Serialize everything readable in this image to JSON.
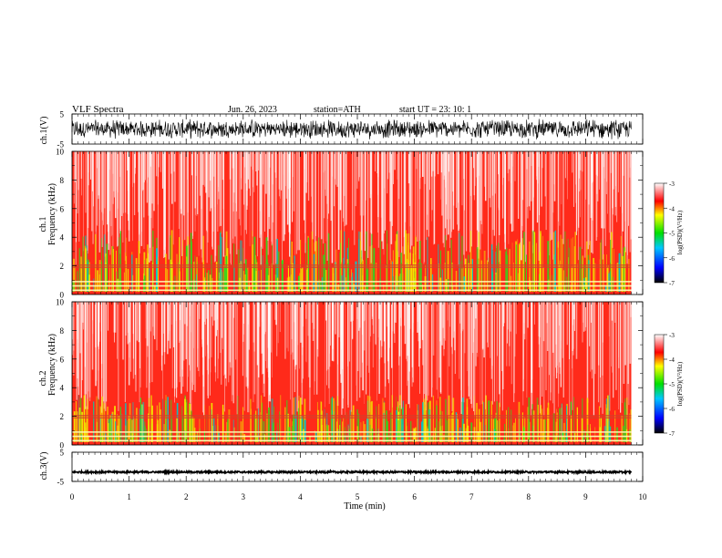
{
  "header": {
    "title": "VLF Spectra",
    "date": "Jun. 26, 2023",
    "station": "station=ATH",
    "start": "start UT =   23: 10: 1"
  },
  "chart_data": [
    {
      "type": "line",
      "name": "ch1-waveform",
      "ylabel": "ch.1(V)",
      "ylim": [
        -5,
        5
      ],
      "yticks": [
        "5",
        "-5"
      ],
      "xlim": [
        0,
        10
      ],
      "trace_amplitude_v": 3.5,
      "trace_end_min": 9.8
    },
    {
      "type": "heatmap",
      "name": "ch1-spectrogram",
      "ylabel": "ch.1\nFrequency (kHz)",
      "ylabel_lines": [
        "ch.1",
        "Frequency (kHz)"
      ],
      "ylim": [
        0,
        10
      ],
      "yticks": [
        "0",
        "2",
        "4",
        "6",
        "8",
        "10"
      ],
      "xlim": [
        0,
        10
      ],
      "data_end_min": 9.8,
      "colorbar": {
        "label": "log(PSD)(V²/Hz)",
        "range": [
          -7,
          -3
        ],
        "ticks": [
          "-3",
          "-4",
          "-5",
          "-6",
          "-7"
        ]
      },
      "features": {
        "stripe_khz": [
          0.3,
          0.6,
          0.9,
          1.9,
          2.05
        ],
        "green_band_khz": [
          0.5,
          4.5
        ]
      }
    },
    {
      "type": "heatmap",
      "name": "ch2-spectrogram",
      "ylabel": "ch.2\nFrequency (kHz)",
      "ylabel_lines": [
        "ch.2",
        "Frequency (kHz)"
      ],
      "ylim": [
        0,
        10
      ],
      "yticks": [
        "0",
        "2",
        "4",
        "6",
        "8",
        "10"
      ],
      "xlim": [
        0,
        10
      ],
      "data_end_min": 9.8,
      "colorbar": {
        "label": "log(PSD)(V²/Hz)",
        "range": [
          -7,
          -3
        ],
        "ticks": [
          "-3",
          "-4",
          "-5",
          "-6",
          "-7"
        ]
      },
      "features": {
        "stripe_khz": [
          0.3,
          0.6,
          0.9,
          1.9,
          2.05
        ],
        "green_band_khz": [
          0.5,
          3.5
        ]
      }
    },
    {
      "type": "line",
      "name": "ch3-waveform",
      "ylabel": "ch.3(V)",
      "ylim": [
        -5,
        5
      ],
      "yticks": [
        "5",
        "-5"
      ],
      "xlim": [
        0,
        10
      ],
      "trace_level_v": -1.8,
      "trace_amplitude_v": 0.3,
      "trace_end_min": 9.8
    }
  ],
  "xaxis": {
    "label": "Time (min)",
    "ticks": [
      "0",
      "1",
      "2",
      "3",
      "4",
      "5",
      "6",
      "7",
      "8",
      "9",
      "10"
    ],
    "range": [
      0,
      10
    ]
  },
  "colors": {
    "background": "#ffffff",
    "trace": "#000000",
    "colormap": [
      "#000000",
      "#0000ff",
      "#00c8ff",
      "#00e000",
      "#ffff00",
      "#ff0000",
      "#ffffff"
    ]
  }
}
